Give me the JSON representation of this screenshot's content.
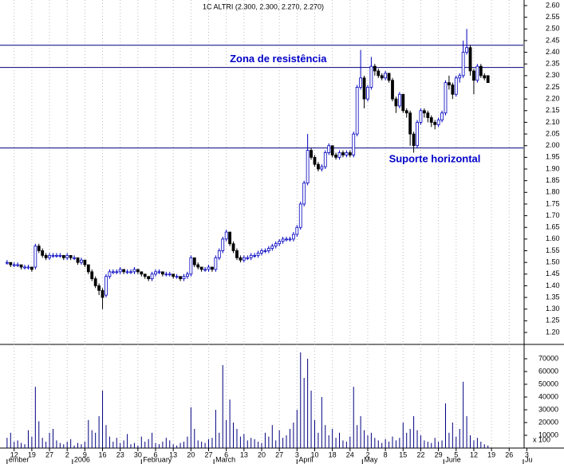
{
  "chart_data": {
    "type": "candlestick",
    "title": "1C ALTRI (2.300, 2.300, 2.270, 2.270)",
    "xlim": [
      -2,
      146
    ],
    "ylim": [
      1.2,
      2.6
    ],
    "yticks": [
      {
        "value": 1.2,
        "label": "1.20"
      },
      {
        "value": 1.25,
        "label": "1.25"
      },
      {
        "value": 1.3,
        "label": "1.30"
      },
      {
        "value": 1.35,
        "label": "1.35"
      },
      {
        "value": 1.4,
        "label": "1.40"
      },
      {
        "value": 1.45,
        "label": "1.45"
      },
      {
        "value": 1.5,
        "label": "1.50"
      },
      {
        "value": 1.55,
        "label": "1.55"
      },
      {
        "value": 1.6,
        "label": "1.60"
      },
      {
        "value": 1.65,
        "label": "1.65"
      },
      {
        "value": 1.7,
        "label": "1.70"
      },
      {
        "value": 1.75,
        "label": "1.75"
      },
      {
        "value": 1.8,
        "label": "1.80"
      },
      {
        "value": 1.85,
        "label": "1.85"
      },
      {
        "value": 1.9,
        "label": "1.90"
      },
      {
        "value": 1.95,
        "label": "1.95"
      },
      {
        "value": 2.0,
        "label": "2.00"
      },
      {
        "value": 2.05,
        "label": "2.05"
      },
      {
        "value": 2.1,
        "label": "2.10"
      },
      {
        "value": 2.15,
        "label": "2.15"
      },
      {
        "value": 2.2,
        "label": "2.20"
      },
      {
        "value": 2.25,
        "label": "2.25"
      },
      {
        "value": 2.3,
        "label": "2.30"
      },
      {
        "value": 2.35,
        "label": "2.35"
      },
      {
        "value": 2.4,
        "label": "2.40"
      },
      {
        "value": 2.45,
        "label": "2.45"
      },
      {
        "value": 2.5,
        "label": "2.50"
      },
      {
        "value": 2.55,
        "label": "2.55"
      },
      {
        "value": 2.6,
        "label": "2.60"
      }
    ],
    "y2lim": [
      0,
      75000
    ],
    "y2ticks": [
      10000,
      20000,
      30000,
      40000,
      50000,
      60000,
      70000
    ],
    "volume_unit_label": "x 100",
    "xticks": [
      {
        "value": 2,
        "label": "12"
      },
      {
        "value": 7,
        "label": "19"
      },
      {
        "value": 12,
        "label": "27"
      },
      {
        "value": 17,
        "label": "2"
      },
      {
        "value": 22,
        "label": "9"
      },
      {
        "value": 27,
        "label": "16"
      },
      {
        "value": 32,
        "label": "23"
      },
      {
        "value": 37,
        "label": "30"
      },
      {
        "value": 42,
        "label": "6"
      },
      {
        "value": 47,
        "label": "13"
      },
      {
        "value": 52,
        "label": "20"
      },
      {
        "value": 57,
        "label": "27"
      },
      {
        "value": 62,
        "label": "6"
      },
      {
        "value": 67,
        "label": "13"
      },
      {
        "value": 72,
        "label": "20"
      },
      {
        "value": 77,
        "label": "27"
      },
      {
        "value": 82,
        "label": "3"
      },
      {
        "value": 87,
        "label": "10"
      },
      {
        "value": 92,
        "label": "18"
      },
      {
        "value": 97,
        "label": "24"
      },
      {
        "value": 102,
        "label": "2"
      },
      {
        "value": 107,
        "label": "8"
      },
      {
        "value": 112,
        "label": "15"
      },
      {
        "value": 117,
        "label": "22"
      },
      {
        "value": 122,
        "label": "29"
      },
      {
        "value": 127,
        "label": "5"
      },
      {
        "value": 132,
        "label": "12"
      },
      {
        "value": 137,
        "label": "19"
      },
      {
        "value": 142,
        "label": "26"
      },
      {
        "value": 147,
        "label": "3"
      }
    ],
    "month_ticks": [
      {
        "value": 0,
        "label": "ember"
      },
      {
        "value": 18.5,
        "label": "2006"
      },
      {
        "value": 38,
        "label": "February"
      },
      {
        "value": 58.5,
        "label": "March"
      },
      {
        "value": 82,
        "label": "April"
      },
      {
        "value": 100.5,
        "label": "May"
      },
      {
        "value": 123.5,
        "label": "June"
      },
      {
        "value": 146,
        "label": "Ju"
      }
    ],
    "grid": true,
    "up_color": "#0000c0",
    "down_color": "#000000",
    "line_color": "#000080",
    "volume_color": "#000080",
    "levels": [
      2.43,
      2.335,
      1.99
    ],
    "annotations": [
      {
        "text": "Zona de resistência",
        "x": 63,
        "y": 2.37
      },
      {
        "text": "Suporte horizontal",
        "x": 108,
        "y": 1.94
      }
    ],
    "ohlc": [
      [
        1.5,
        1.51,
        1.49,
        1.5
      ],
      [
        1.5,
        1.5,
        1.48,
        1.49
      ],
      [
        1.49,
        1.5,
        1.48,
        1.49
      ],
      [
        1.49,
        1.5,
        1.48,
        1.49
      ],
      [
        1.49,
        1.49,
        1.47,
        1.48
      ],
      [
        1.48,
        1.49,
        1.47,
        1.48
      ],
      [
        1.48,
        1.49,
        1.47,
        1.48
      ],
      [
        1.48,
        1.48,
        1.46,
        1.47
      ],
      [
        1.48,
        1.58,
        1.47,
        1.57
      ],
      [
        1.57,
        1.58,
        1.54,
        1.55
      ],
      [
        1.55,
        1.56,
        1.52,
        1.53
      ],
      [
        1.53,
        1.54,
        1.51,
        1.52
      ],
      [
        1.52,
        1.54,
        1.51,
        1.53
      ],
      [
        1.53,
        1.54,
        1.52,
        1.53
      ],
      [
        1.53,
        1.54,
        1.52,
        1.53
      ],
      [
        1.53,
        1.54,
        1.52,
        1.53
      ],
      [
        1.53,
        1.53,
        1.51,
        1.52
      ],
      [
        1.52,
        1.54,
        1.51,
        1.53
      ],
      [
        1.53,
        1.53,
        1.51,
        1.52
      ],
      [
        1.52,
        1.53,
        1.51,
        1.52
      ],
      [
        1.52,
        1.52,
        1.49,
        1.5
      ],
      [
        1.5,
        1.52,
        1.49,
        1.51
      ],
      [
        1.51,
        1.51,
        1.48,
        1.49
      ],
      [
        1.49,
        1.49,
        1.45,
        1.46
      ],
      [
        1.46,
        1.47,
        1.42,
        1.43
      ],
      [
        1.43,
        1.44,
        1.39,
        1.4
      ],
      [
        1.4,
        1.41,
        1.36,
        1.38
      ],
      [
        1.38,
        1.39,
        1.3,
        1.35
      ],
      [
        1.36,
        1.45,
        1.35,
        1.44
      ],
      [
        1.44,
        1.47,
        1.43,
        1.46
      ],
      [
        1.46,
        1.47,
        1.45,
        1.46
      ],
      [
        1.46,
        1.47,
        1.45,
        1.46
      ],
      [
        1.46,
        1.48,
        1.45,
        1.47
      ],
      [
        1.47,
        1.47,
        1.45,
        1.46
      ],
      [
        1.46,
        1.47,
        1.45,
        1.46
      ],
      [
        1.46,
        1.47,
        1.45,
        1.46
      ],
      [
        1.46,
        1.48,
        1.45,
        1.47
      ],
      [
        1.47,
        1.47,
        1.45,
        1.46
      ],
      [
        1.46,
        1.46,
        1.44,
        1.45
      ],
      [
        1.45,
        1.45,
        1.43,
        1.44
      ],
      [
        1.44,
        1.44,
        1.42,
        1.43
      ],
      [
        1.43,
        1.46,
        1.42,
        1.45
      ],
      [
        1.45,
        1.47,
        1.44,
        1.46
      ],
      [
        1.46,
        1.47,
        1.45,
        1.46
      ],
      [
        1.46,
        1.46,
        1.44,
        1.45
      ],
      [
        1.45,
        1.46,
        1.44,
        1.45
      ],
      [
        1.45,
        1.46,
        1.44,
        1.45
      ],
      [
        1.45,
        1.45,
        1.43,
        1.44
      ],
      [
        1.44,
        1.45,
        1.43,
        1.44
      ],
      [
        1.44,
        1.44,
        1.42,
        1.43
      ],
      [
        1.43,
        1.45,
        1.42,
        1.44
      ],
      [
        1.44,
        1.46,
        1.43,
        1.45
      ],
      [
        1.45,
        1.53,
        1.44,
        1.52
      ],
      [
        1.52,
        1.52,
        1.48,
        1.49
      ],
      [
        1.49,
        1.5,
        1.47,
        1.48
      ],
      [
        1.48,
        1.48,
        1.46,
        1.47
      ],
      [
        1.47,
        1.48,
        1.46,
        1.47
      ],
      [
        1.47,
        1.49,
        1.46,
        1.48
      ],
      [
        1.48,
        1.48,
        1.46,
        1.47
      ],
      [
        1.47,
        1.53,
        1.46,
        1.52
      ],
      [
        1.52,
        1.56,
        1.51,
        1.55
      ],
      [
        1.55,
        1.61,
        1.54,
        1.6
      ],
      [
        1.6,
        1.64,
        1.59,
        1.63
      ],
      [
        1.63,
        1.63,
        1.57,
        1.58
      ],
      [
        1.58,
        1.59,
        1.54,
        1.55
      ],
      [
        1.55,
        1.56,
        1.51,
        1.52
      ],
      [
        1.52,
        1.53,
        1.5,
        1.51
      ],
      [
        1.51,
        1.53,
        1.5,
        1.52
      ],
      [
        1.52,
        1.53,
        1.51,
        1.52
      ],
      [
        1.52,
        1.54,
        1.51,
        1.53
      ],
      [
        1.53,
        1.54,
        1.52,
        1.53
      ],
      [
        1.53,
        1.55,
        1.52,
        1.54
      ],
      [
        1.54,
        1.56,
        1.53,
        1.55
      ],
      [
        1.55,
        1.56,
        1.54,
        1.55
      ],
      [
        1.55,
        1.57,
        1.54,
        1.56
      ],
      [
        1.56,
        1.58,
        1.55,
        1.57
      ],
      [
        1.57,
        1.59,
        1.56,
        1.58
      ],
      [
        1.58,
        1.6,
        1.57,
        1.59
      ],
      [
        1.59,
        1.61,
        1.58,
        1.6
      ],
      [
        1.6,
        1.61,
        1.59,
        1.6
      ],
      [
        1.6,
        1.61,
        1.59,
        1.6
      ],
      [
        1.6,
        1.63,
        1.59,
        1.62
      ],
      [
        1.62,
        1.66,
        1.61,
        1.65
      ],
      [
        1.65,
        1.76,
        1.64,
        1.75
      ],
      [
        1.75,
        1.85,
        1.74,
        1.84
      ],
      [
        1.84,
        2.05,
        1.83,
        1.98
      ],
      [
        1.98,
        1.99,
        1.94,
        1.95
      ],
      [
        1.95,
        1.96,
        1.91,
        1.92
      ],
      [
        1.92,
        1.93,
        1.89,
        1.9
      ],
      [
        1.9,
        1.92,
        1.89,
        1.91
      ],
      [
        1.91,
        1.98,
        1.9,
        1.97
      ],
      [
        1.97,
        2.01,
        1.96,
        2.0
      ],
      [
        2.0,
        2.0,
        1.95,
        1.96
      ],
      [
        1.96,
        1.97,
        1.94,
        1.95
      ],
      [
        1.95,
        1.98,
        1.94,
        1.97
      ],
      [
        1.97,
        1.98,
        1.95,
        1.96
      ],
      [
        1.96,
        1.98,
        1.95,
        1.97
      ],
      [
        1.97,
        1.98,
        1.95,
        1.96
      ],
      [
        1.96,
        2.06,
        1.95,
        2.05
      ],
      [
        2.05,
        2.26,
        2.04,
        2.25
      ],
      [
        2.25,
        2.41,
        2.24,
        2.29
      ],
      [
        2.29,
        2.3,
        2.16,
        2.2
      ],
      [
        2.2,
        2.26,
        2.19,
        2.25
      ],
      [
        2.25,
        2.38,
        2.24,
        2.34
      ],
      [
        2.34,
        2.35,
        2.3,
        2.32
      ],
      [
        2.32,
        2.33,
        2.29,
        2.3
      ],
      [
        2.3,
        2.31,
        2.28,
        2.29
      ],
      [
        2.29,
        2.32,
        2.28,
        2.31
      ],
      [
        2.31,
        2.31,
        2.27,
        2.28
      ],
      [
        2.28,
        2.29,
        2.19,
        2.2
      ],
      [
        2.2,
        2.21,
        2.14,
        2.17
      ],
      [
        2.17,
        2.23,
        2.16,
        2.22
      ],
      [
        2.22,
        2.22,
        2.14,
        2.15
      ],
      [
        2.15,
        2.16,
        2.12,
        2.14
      ],
      [
        2.14,
        2.15,
        2.0,
        2.05
      ],
      [
        2.05,
        2.06,
        1.97,
        2.0
      ],
      [
        2.0,
        2.11,
        1.99,
        2.1
      ],
      [
        2.1,
        2.16,
        2.09,
        2.15
      ],
      [
        2.15,
        2.16,
        2.12,
        2.14
      ],
      [
        2.14,
        2.15,
        2.1,
        2.12
      ],
      [
        2.12,
        2.13,
        2.08,
        2.1
      ],
      [
        2.1,
        2.11,
        2.07,
        2.09
      ],
      [
        2.09,
        2.12,
        2.08,
        2.11
      ],
      [
        2.11,
        2.15,
        2.1,
        2.14
      ],
      [
        2.14,
        2.28,
        2.13,
        2.27
      ],
      [
        2.27,
        2.3,
        2.24,
        2.26
      ],
      [
        2.26,
        2.27,
        2.2,
        2.22
      ],
      [
        2.22,
        2.3,
        2.21,
        2.29
      ],
      [
        2.29,
        2.31,
        2.27,
        2.3
      ],
      [
        2.3,
        2.45,
        2.29,
        2.4
      ],
      [
        2.4,
        2.5,
        2.39,
        2.42
      ],
      [
        2.42,
        2.43,
        2.3,
        2.32
      ],
      [
        2.32,
        2.33,
        2.22,
        2.28
      ],
      [
        2.28,
        2.35,
        2.27,
        2.34
      ],
      [
        2.34,
        2.35,
        2.29,
        2.3
      ],
      [
        2.3,
        2.31,
        2.28,
        2.29
      ],
      [
        2.3,
        2.3,
        2.27,
        2.27
      ]
    ],
    "volume": [
      8000,
      12000,
      5000,
      6000,
      4000,
      3000,
      14000,
      9000,
      48000,
      21000,
      8000,
      5000,
      12000,
      15000,
      6000,
      4000,
      3000,
      5000,
      7000,
      2000,
      4000,
      3000,
      5000,
      22000,
      14000,
      12000,
      25000,
      45000,
      18000,
      9000,
      5000,
      8000,
      4000,
      6000,
      11000,
      3000,
      4000,
      2000,
      9000,
      5000,
      7000,
      12000,
      4000,
      3000,
      5000,
      8000,
      6000,
      3000,
      2000,
      4000,
      5000,
      9000,
      32000,
      15000,
      6000,
      5000,
      4000,
      7000,
      8000,
      30000,
      12000,
      65000,
      22000,
      38000,
      20000,
      15000,
      9000,
      11000,
      6000,
      8000,
      7000,
      5000,
      4000,
      12000,
      9000,
      18000,
      6000,
      14000,
      8000,
      10000,
      15000,
      20000,
      30000,
      75000,
      55000,
      70000,
      45000,
      22000,
      12000,
      40000,
      18000,
      10000,
      15000,
      8000,
      12000,
      6000,
      5000,
      9000,
      48000,
      18000,
      25000,
      14000,
      10000,
      12000,
      8000,
      6000,
      4000,
      7000,
      5000,
      9000,
      6000,
      8000,
      20000,
      12000,
      15000,
      25000,
      14000,
      10000,
      6000,
      5000,
      4000,
      8000,
      5000,
      6000,
      35000,
      12000,
      20000,
      9000,
      15000,
      52000,
      25000,
      10000,
      6000,
      8000,
      5000,
      3000,
      2000
    ]
  }
}
